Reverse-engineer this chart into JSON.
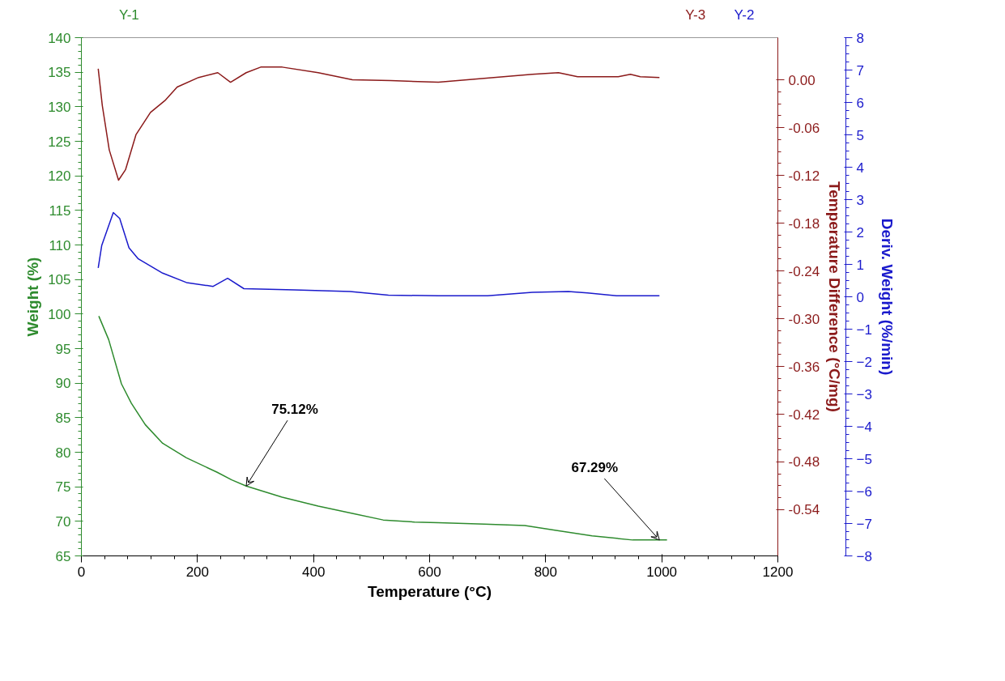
{
  "chart_data": {
    "type": "line",
    "xlabel": "Temperature (°C)",
    "ylabel": "Weight (%)",
    "y2label": "Deriv. Weight (%/min)",
    "y3label": "Temperature Difference (°C/mg)",
    "xlim": [
      0,
      1200
    ],
    "xticks": [
      0,
      200,
      400,
      600,
      800,
      1000,
      1200
    ],
    "ylim": [
      65,
      140
    ],
    "yticks": [
      65,
      70,
      75,
      80,
      85,
      90,
      95,
      100,
      105,
      110,
      115,
      120,
      125,
      130,
      135,
      140
    ],
    "y2lim": [
      -8,
      8
    ],
    "y2ticks": [
      -8,
      -7,
      -6,
      -5,
      -4,
      -3,
      -2,
      -1,
      0,
      1,
      2,
      3,
      4,
      5,
      6,
      7,
      8
    ],
    "y3lim": [
      -0.598,
      0.053
    ],
    "y3ticks": [
      {
        "value": 0,
        "label": "0.00"
      },
      {
        "value": -0.06,
        "label": "-0.06"
      },
      {
        "value": -0.12,
        "label": "-0.12"
      },
      {
        "value": -0.18,
        "label": "-0.18"
      },
      {
        "value": -0.24,
        "label": "-0.24"
      },
      {
        "value": -0.3,
        "label": "-0.30"
      },
      {
        "value": -0.36,
        "label": "-0.36"
      },
      {
        "value": -0.42,
        "label": "-0.42"
      },
      {
        "value": -0.48,
        "label": "-0.48"
      },
      {
        "value": -0.54,
        "label": "-0.54"
      }
    ],
    "series": [
      {
        "axis": "y",
        "color": "#2e8b2e",
        "x": [
          30,
          47,
          69,
          86,
          110,
          140,
          181,
          234,
          259,
          284,
          346,
          408,
          470,
          520,
          574,
          615,
          694,
          764,
          818,
          880,
          950,
          996,
          1009
        ],
        "values": [
          99.7,
          96.3,
          89.9,
          87.1,
          84.0,
          81.3,
          79.2,
          77.1,
          76.0,
          75.1,
          73.5,
          72.2,
          71.1,
          70.2,
          69.9,
          69.8,
          69.6,
          69.4,
          68.7,
          67.9,
          67.3,
          67.3,
          67.3
        ]
      },
      {
        "axis": "y3",
        "color": "#8b1a1a",
        "x": [
          29,
          36,
          48,
          64,
          76,
          94,
          119,
          144,
          165,
          202,
          235,
          257,
          284,
          309,
          346,
          408,
          467,
          533,
          615,
          694,
          777,
          822,
          855,
          925,
          946,
          963,
          996
        ],
        "values": [
          0.014,
          -0.032,
          -0.088,
          -0.126,
          -0.113,
          -0.069,
          -0.041,
          -0.026,
          -0.009,
          0.003,
          0.009,
          -0.003,
          0.009,
          0.016,
          0.016,
          0.009,
          0.0,
          -0.001,
          -0.003,
          0.002,
          0.007,
          0.009,
          0.004,
          0.004,
          0.007,
          0.004,
          0.003
        ]
      },
      {
        "axis": "y2",
        "color": "#1a1acc",
        "x": [
          29,
          35,
          55,
          66,
          82,
          98,
          140,
          181,
          227,
          252,
          280,
          367,
          463,
          529,
          615,
          700,
          777,
          839,
          872,
          922,
          996
        ],
        "values": [
          0.89,
          1.58,
          2.6,
          2.42,
          1.51,
          1.17,
          0.73,
          0.44,
          0.32,
          0.57,
          0.25,
          0.21,
          0.16,
          0.05,
          0.03,
          0.03,
          0.14,
          0.16,
          0.12,
          0.03,
          0.03
        ]
      }
    ],
    "annotations": [
      "Y-1",
      "Y-3",
      "Y-2",
      {
        "text": "75.12%",
        "x": 284,
        "y": 75.12
      },
      {
        "text": "67.29%",
        "x": 996,
        "y": 67.29
      }
    ]
  }
}
